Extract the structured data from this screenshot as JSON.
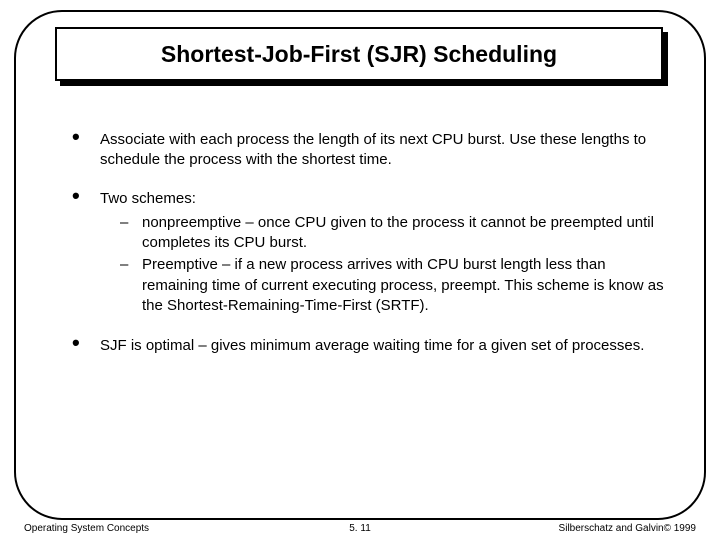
{
  "slide": {
    "title": "Shortest-Job-First (SJR) Scheduling",
    "border_color": "#000000",
    "border_radius": 48,
    "background": "#ffffff"
  },
  "bullets": [
    {
      "text": "Associate with each process the length of its next CPU burst. Use these lengths to schedule the process with the shortest time."
    },
    {
      "text": "Two schemes:",
      "subs": [
        "nonpreemptive – once CPU given to the process it cannot be preempted until completes its CPU burst.",
        "Preemptive – if a new process arrives with CPU burst length less than remaining time of current executing process, preempt.  This scheme is know as the Shortest-Remaining-Time-First (SRTF)."
      ]
    },
    {
      "text": "SJF is optimal – gives minimum average waiting time for a given set of processes."
    }
  ],
  "footer": {
    "left": "Operating System Concepts",
    "center": "5. 11",
    "right": "Silberschatz and Galvin© 1999"
  },
  "typography": {
    "title_fontsize": 23,
    "body_fontsize": 15,
    "footer_fontsize": 10,
    "font_family": "Arial"
  }
}
